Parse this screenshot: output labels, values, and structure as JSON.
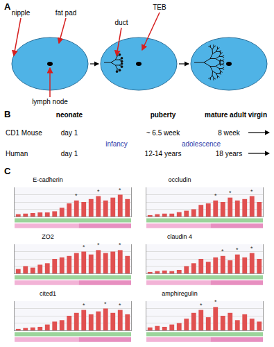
{
  "panels": {
    "A": {
      "label": "A",
      "labels": {
        "nipple": "nipple",
        "fat_pad": "fat pad",
        "lymph_node": "lymph node",
        "duct": "duct",
        "teb": "TEB"
      }
    },
    "B": {
      "label": "B",
      "stages": [
        "neonate",
        "puberty",
        "mature adult virgin"
      ],
      "periods": [
        "infancy",
        "adolescence"
      ],
      "rows": [
        {
          "name": "CD1 Mouse",
          "ages": [
            "day 1",
            "~ 6.5 week",
            "8 week"
          ]
        },
        {
          "name": "Human",
          "ages": [
            "day 1",
            "12-14 years",
            "18 years"
          ]
        }
      ]
    },
    "C": {
      "label": "C"
    }
  },
  "chart_data": [
    {
      "type": "bar",
      "title": "E-cadherin",
      "categories": [
        null,
        null,
        null,
        null,
        null,
        null,
        null,
        null,
        null,
        null,
        null,
        null,
        null,
        null,
        null,
        null
      ],
      "values": [
        8,
        10,
        12,
        14,
        14,
        18,
        30,
        45,
        55,
        50,
        60,
        70,
        55,
        65,
        75,
        60
      ],
      "color": "#e05050",
      "ylim": [
        0,
        100
      ],
      "yticks": [
        0,
        25,
        50,
        75,
        100
      ],
      "grid": true,
      "tick_labels": false,
      "annotations": [
        {
          "index": 8,
          "text": "*"
        },
        {
          "index": 11,
          "text": "*"
        },
        {
          "index": 14,
          "text": "*"
        }
      ]
    },
    {
      "type": "bar",
      "title": "occludin",
      "categories": [
        null,
        null,
        null,
        null,
        null,
        null,
        null,
        null,
        null,
        null,
        null,
        null,
        null,
        null,
        null,
        null
      ],
      "values": [
        5,
        8,
        10,
        10,
        15,
        20,
        25,
        40,
        45,
        55,
        50,
        65,
        55,
        60,
        70,
        50
      ],
      "color": "#e05050",
      "ylim": [
        0,
        100
      ],
      "yticks": [
        0,
        25,
        50,
        75,
        100
      ],
      "grid": true,
      "tick_labels": false,
      "annotations": [
        {
          "index": 9,
          "text": "*"
        },
        {
          "index": 11,
          "text": "*"
        },
        {
          "index": 14,
          "text": "*"
        }
      ]
    },
    {
      "type": "bar",
      "title": "ZO2",
      "categories": [
        null,
        null,
        null,
        null,
        null,
        null,
        null,
        null,
        null,
        null,
        null,
        null,
        null,
        null,
        null,
        null
      ],
      "values": [
        15,
        25,
        20,
        30,
        35,
        50,
        55,
        60,
        70,
        75,
        65,
        80,
        70,
        75,
        80,
        60
      ],
      "color": "#e05050",
      "ylim": [
        0,
        100
      ],
      "yticks": [
        0,
        25,
        50,
        75,
        100
      ],
      "grid": true,
      "tick_labels": false,
      "annotations": [
        {
          "index": 9,
          "text": "*"
        },
        {
          "index": 11,
          "text": "*"
        },
        {
          "index": 14,
          "text": "*"
        }
      ]
    },
    {
      "type": "bar",
      "title": "claudin 4",
      "categories": [
        null,
        null,
        null,
        null,
        null,
        null,
        null,
        null,
        null,
        null,
        null,
        null,
        null,
        null,
        null,
        null
      ],
      "values": [
        5,
        8,
        10,
        8,
        12,
        25,
        35,
        50,
        40,
        55,
        60,
        45,
        65,
        55,
        70,
        50
      ],
      "color": "#e05050",
      "ylim": [
        0,
        100
      ],
      "yticks": [
        0,
        25,
        50,
        75,
        100
      ],
      "grid": true,
      "tick_labels": false,
      "annotations": [
        {
          "index": 10,
          "text": "*"
        },
        {
          "index": 12,
          "text": "*"
        },
        {
          "index": 14,
          "text": "*"
        }
      ]
    },
    {
      "type": "bar",
      "title": "cited1",
      "categories": [
        null,
        null,
        null,
        null,
        null,
        null,
        null,
        null,
        null,
        null,
        null,
        null,
        null,
        null,
        null,
        null
      ],
      "values": [
        5,
        8,
        10,
        12,
        20,
        30,
        35,
        50,
        60,
        70,
        55,
        65,
        75,
        60,
        70,
        55
      ],
      "color": "#e05050",
      "ylim": [
        0,
        100
      ],
      "yticks": [
        0,
        25,
        50,
        75,
        100
      ],
      "grid": true,
      "tick_labels": false,
      "annotations": [
        {
          "index": 9,
          "text": "*"
        },
        {
          "index": 12,
          "text": "*"
        },
        {
          "index": 14,
          "text": "*"
        }
      ]
    },
    {
      "type": "bar",
      "title": "amphiregulin",
      "categories": [
        null,
        null,
        null,
        null,
        null,
        null,
        null,
        null,
        null,
        null,
        null,
        null,
        null,
        null,
        null,
        null
      ],
      "values": [
        10,
        15,
        12,
        20,
        25,
        40,
        60,
        70,
        45,
        80,
        50,
        60,
        35,
        55,
        40,
        30
      ],
      "color": "#e05050",
      "ylim": [
        0,
        100
      ],
      "yticks": [
        0,
        25,
        50,
        75,
        100
      ],
      "grid": true,
      "tick_labels": false,
      "annotations": [
        {
          "index": 7,
          "text": "*"
        },
        {
          "index": 9,
          "text": "*"
        }
      ]
    }
  ]
}
